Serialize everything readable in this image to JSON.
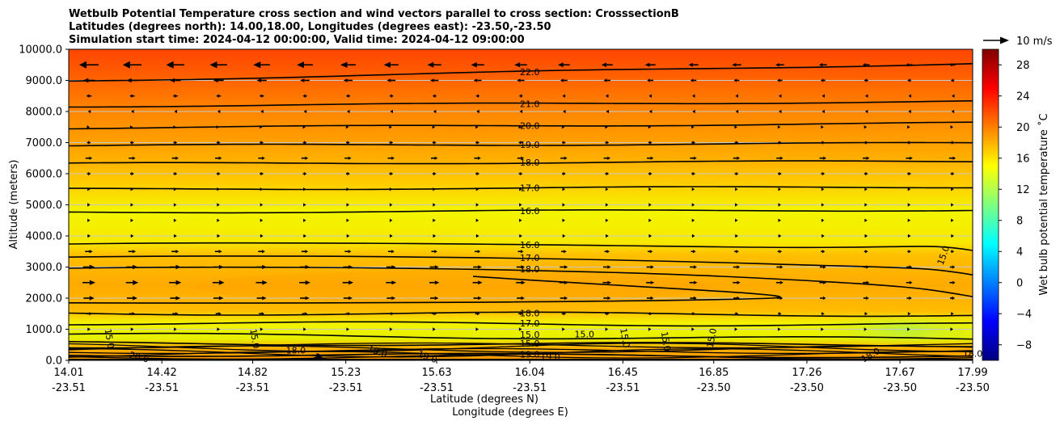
{
  "chart_data": {
    "type": "contour_cross_section",
    "title_lines": [
      "Wetbulb Potential Temperature cross section and wind vectors parallel to cross section: CrosssectionB",
      "Latitudes (degrees north): 14.00,18.00, Longitudes (degrees east): -23.50,-23.50",
      "Simulation start time: 2024-04-12 00:00:00, Valid time: 2024-04-12 09:00:00"
    ],
    "ylabel": "Altitude (meters)",
    "xlabel_lat": "Latitude (degrees N)",
    "xlabel_lon": "Longitude (degrees E)",
    "ylim": [
      0,
      10000
    ],
    "y_ticks": [
      0,
      1000,
      2000,
      3000,
      4000,
      5000,
      6000,
      7000,
      8000,
      9000,
      10000
    ],
    "y_tick_labels": [
      "0.0",
      "1000.0",
      "2000.0",
      "3000.0",
      "4000.0",
      "5000.0",
      "6000.0",
      "7000.0",
      "8000.0",
      "9000.0",
      "10000.0"
    ],
    "x_range": [
      14.01,
      17.99
    ],
    "x_ticks": [
      {
        "lat": "14.01",
        "lon": "-23.51"
      },
      {
        "lat": "14.42",
        "lon": "-23.51"
      },
      {
        "lat": "14.82",
        "lon": "-23.51"
      },
      {
        "lat": "15.23",
        "lon": "-23.51"
      },
      {
        "lat": "15.63",
        "lon": "-23.51"
      },
      {
        "lat": "16.04",
        "lon": "-23.51"
      },
      {
        "lat": "16.45",
        "lon": "-23.51"
      },
      {
        "lat": "16.85",
        "lon": "-23.50"
      },
      {
        "lat": "17.26",
        "lon": "-23.50"
      },
      {
        "lat": "17.67",
        "lon": "-23.50"
      },
      {
        "lat": "17.99",
        "lon": "-23.50"
      }
    ],
    "colorbar": {
      "label": "Wet bulb potential temperature ˚C",
      "range": [
        -10,
        30
      ],
      "ticks": [
        -8,
        -4,
        0,
        4,
        8,
        12,
        16,
        20,
        24,
        28
      ],
      "tick_labels": [
        "−8",
        "−4",
        "0",
        "4",
        "8",
        "12",
        "16",
        "20",
        "24",
        "28"
      ],
      "colormap": "jet"
    },
    "quiver_key": {
      "label": "10 m/s",
      "speed_ms": 10
    },
    "contour_levels": [
      {
        "value": 22,
        "label": "22.0",
        "altitude_m": 8980
      },
      {
        "value": 21,
        "label": "21.0",
        "altitude_m": 8170
      },
      {
        "value": 20,
        "label": "20.0",
        "altitude_m": 7470
      },
      {
        "value": 19,
        "label": "19.0",
        "altitude_m": 6900
      },
      {
        "value": 18,
        "label": "18.0",
        "altitude_m": 6320
      },
      {
        "value": 17,
        "label": "17.0",
        "altitude_m": 5500
      },
      {
        "value": 16,
        "label": "16.0",
        "altitude_m": 4760
      }
    ],
    "inversion_contours": [
      {
        "value": 16,
        "label": "16.0",
        "altitude_m": 3740
      },
      {
        "value": 17,
        "label": "17.0",
        "altitude_m": 3320
      },
      {
        "value": 18,
        "label": "18.0",
        "altitude_m": 2960
      }
    ],
    "lower_contours": [
      {
        "value": 18,
        "label": "18.0",
        "altitude_m": 1520
      },
      {
        "value": 17,
        "label": "17.0",
        "altitude_m": 1200
      },
      {
        "value": 15,
        "label": "15.0",
        "altitude_m": 830
      },
      {
        "value": 15,
        "label": "15.0",
        "altitude_m": 550
      },
      {
        "value": 19,
        "label": "19.0",
        "altitude_m": 190
      }
    ],
    "scattered_contour_labels": [
      {
        "label": "15.0",
        "lat": 14.19,
        "altitude_m": 700
      },
      {
        "label": "20.0",
        "lat": 14.32,
        "altitude_m": 110
      },
      {
        "label": "15.0",
        "lat": 14.83,
        "altitude_m": 700
      },
      {
        "label": "18.0",
        "lat": 15.01,
        "altitude_m": 320
      },
      {
        "label": "19.0",
        "lat": 15.37,
        "altitude_m": 290
      },
      {
        "label": "19.0",
        "lat": 15.59,
        "altitude_m": 120
      },
      {
        "label": "19.0",
        "lat": 16.13,
        "altitude_m": 120
      },
      {
        "label": "15.0",
        "lat": 16.28,
        "altitude_m": 840
      },
      {
        "label": "15.0",
        "lat": 16.46,
        "altitude_m": 720
      },
      {
        "label": "15.0",
        "lat": 16.64,
        "altitude_m": 610
      },
      {
        "label": "15.0",
        "lat": 16.84,
        "altitude_m": 720
      },
      {
        "label": "18.0",
        "lat": 17.54,
        "altitude_m": 180
      },
      {
        "label": "15.0",
        "lat": 17.86,
        "altitude_m": 3380
      },
      {
        "label": "18.0",
        "lat": 17.99,
        "altitude_m": 220
      }
    ],
    "wind_rows": [
      {
        "altitude_m": 9500,
        "speed_ms": -7.5
      },
      {
        "altitude_m": 9000,
        "speed_ms": -4.5
      },
      {
        "altitude_m": 8500,
        "speed_ms": -2.0
      },
      {
        "altitude_m": 8000,
        "speed_ms": -0.8
      },
      {
        "altitude_m": 7500,
        "speed_ms": 0.6
      },
      {
        "altitude_m": 7000,
        "speed_ms": 1.5
      },
      {
        "altitude_m": 6500,
        "speed_ms": 2.6
      },
      {
        "altitude_m": 6000,
        "speed_ms": 1.5
      },
      {
        "altitude_m": 5500,
        "speed_ms": 1.0
      },
      {
        "altitude_m": 5000,
        "speed_ms": 1.0
      },
      {
        "altitude_m": 4500,
        "speed_ms": 1.0
      },
      {
        "altitude_m": 4000,
        "speed_ms": 1.2
      },
      {
        "altitude_m": 3500,
        "speed_ms": 3.0
      },
      {
        "altitude_m": 3000,
        "speed_ms": 4.5
      },
      {
        "altitude_m": 2500,
        "speed_ms": 5.0
      },
      {
        "altitude_m": 2000,
        "speed_ms": 4.2
      },
      {
        "altitude_m": 1500,
        "speed_ms": 2.4
      },
      {
        "altitude_m": 1000,
        "speed_ms": 1.2
      }
    ],
    "terrain": {
      "lat_range": [
        15.02,
        15.18
      ],
      "peak_altitude_m": 220
    }
  }
}
